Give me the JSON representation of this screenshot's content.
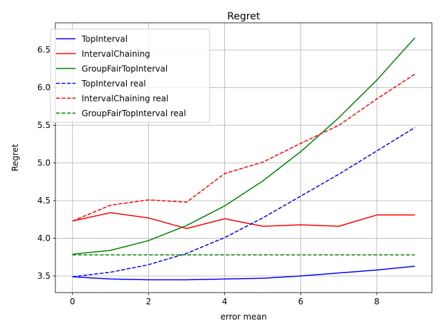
{
  "chart_data": {
    "type": "line",
    "title": "Regret",
    "xlabel": "error mean",
    "ylabel": "Regret",
    "xlim": [
      -0.45,
      9.45
    ],
    "ylim": [
      3.28,
      6.86
    ],
    "xticks": [
      0,
      2,
      4,
      6,
      8
    ],
    "yticks": [
      3.5,
      4.0,
      4.5,
      5.0,
      5.5,
      6.0,
      6.5
    ],
    "ytick_labels": [
      "3.5",
      "4.0",
      "4.5",
      "5.0",
      "5.5",
      "6.0",
      "6.5"
    ],
    "grid": true,
    "legend_position": "top-left",
    "x": [
      0,
      1,
      2,
      3,
      4,
      5,
      6,
      7,
      8,
      9
    ],
    "series": [
      {
        "name": "TopInterval",
        "color": "#0000ff",
        "dash": "solid",
        "values": [
          3.49,
          3.46,
          3.45,
          3.45,
          3.46,
          3.47,
          3.5,
          3.54,
          3.58,
          3.63
        ]
      },
      {
        "name": "IntervalChaining",
        "color": "#ff0000",
        "dash": "solid",
        "values": [
          4.23,
          4.34,
          4.27,
          4.13,
          4.26,
          4.16,
          4.18,
          4.16,
          4.31,
          4.31
        ]
      },
      {
        "name": "GroupFairTopInterval",
        "color": "#008000",
        "dash": "solid",
        "values": [
          3.79,
          3.84,
          3.97,
          4.17,
          4.43,
          4.76,
          5.15,
          5.6,
          6.1,
          6.66
        ]
      },
      {
        "name": "TopInterval real",
        "color": "#0000ff",
        "dash": "dashed",
        "values": [
          3.49,
          3.55,
          3.65,
          3.8,
          4.01,
          4.27,
          4.56,
          4.85,
          5.16,
          5.47
        ]
      },
      {
        "name": "IntervalChaining real",
        "color": "#ff0000",
        "dash": "dashed",
        "values": [
          4.23,
          4.44,
          4.51,
          4.48,
          4.86,
          5.01,
          5.26,
          5.5,
          5.85,
          6.18
        ]
      },
      {
        "name": "GroupFairTopInterval real",
        "color": "#008000",
        "dash": "dashed",
        "values": [
          3.78,
          3.78,
          3.78,
          3.78,
          3.78,
          3.78,
          3.78,
          3.78,
          3.78,
          3.78
        ]
      }
    ]
  }
}
